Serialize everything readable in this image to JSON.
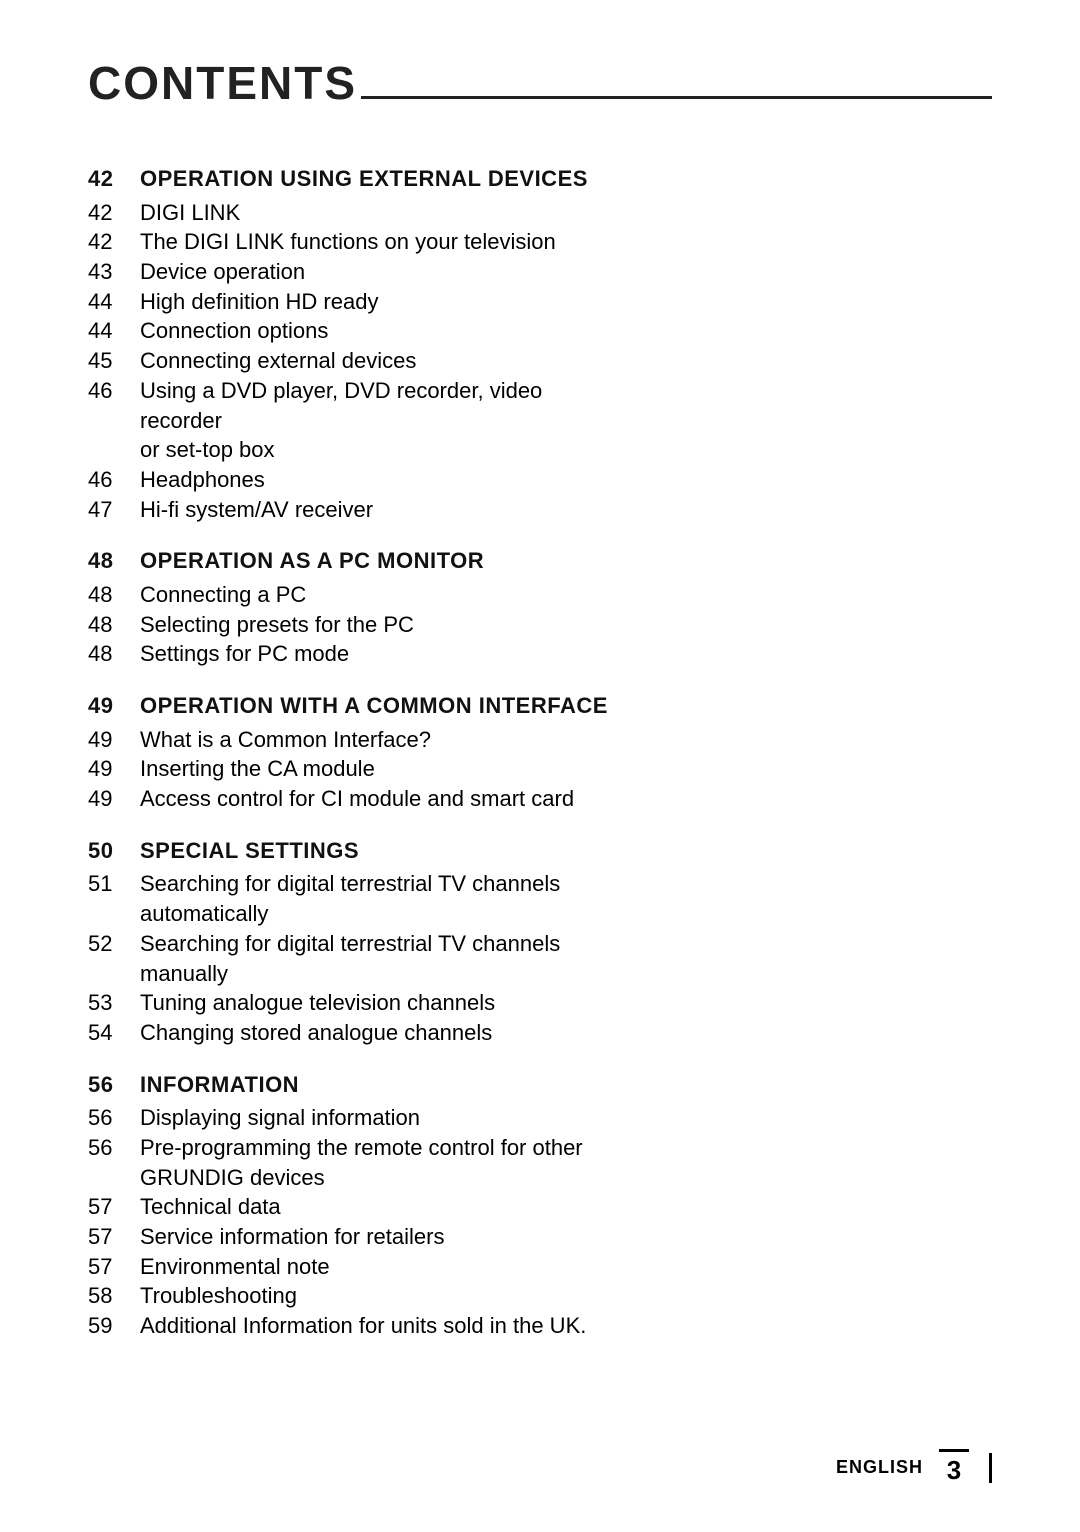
{
  "page": {
    "title": "CONTENTS",
    "footer_language": "ENGLISH",
    "footer_page": "3"
  },
  "sections": [
    {
      "page": "42",
      "heading": "OPERATION USING EXTERNAL DEVICES",
      "items": [
        {
          "page": "42",
          "text": "DIGI LINK"
        },
        {
          "page": "42",
          "text": "The DIGI LINK functions on your television"
        },
        {
          "page": "43",
          "text": "Device operation"
        },
        {
          "page": "44",
          "text": "High definition  HD ready"
        },
        {
          "page": "44",
          "text": "Connection options"
        },
        {
          "page": "45",
          "text": "Connecting external devices"
        },
        {
          "page": "46",
          "text": "Using a DVD player, DVD recorder, video recorder",
          "cont": "or set-top box"
        },
        {
          "page": "46",
          "text": "Headphones"
        },
        {
          "page": "47",
          "text": "Hi-fi system/AV receiver"
        }
      ]
    },
    {
      "page": "48",
      "heading": "OPERATION AS A PC MONITOR",
      "items": [
        {
          "page": "48",
          "text": "Connecting a PC"
        },
        {
          "page": "48",
          "text": "Selecting presets for the PC"
        },
        {
          "page": "48",
          "text": "Settings for PC mode"
        }
      ]
    },
    {
      "page": "49",
      "heading": "OPERATION WITH A COMMON INTERFACE",
      "items": [
        {
          "page": "49",
          "text": "What is a Common Interface?"
        },
        {
          "page": "49",
          "text": "Inserting the CA module"
        },
        {
          "page": "49",
          "text": "Access control for CI module and smart card"
        }
      ]
    },
    {
      "page": "50",
      "heading": "SPECIAL SETTINGS",
      "items": [
        {
          "page": "51",
          "text": "Searching for digital terrestrial TV channels automatically"
        },
        {
          "page": "52",
          "text": "Searching for digital terrestrial TV channels manually"
        },
        {
          "page": "53",
          "text": "Tuning analogue television channels"
        },
        {
          "page": "54",
          "text": "Changing stored analogue channels"
        }
      ]
    },
    {
      "page": "56",
      "heading": "INFORMATION",
      "items": [
        {
          "page": "56",
          "text": "Displaying signal information"
        },
        {
          "page": "56",
          "text": "Pre-programming the remote control for other GRUNDIG devices"
        },
        {
          "page": "57",
          "text": "Technical data"
        },
        {
          "page": "57",
          "text": "Service information for retailers"
        },
        {
          "page": "57",
          "text": "Environmental note"
        },
        {
          "page": "58",
          "text": "Troubleshooting"
        },
        {
          "page": "59",
          "text": "Additional Information for units sold in the UK."
        }
      ]
    }
  ]
}
